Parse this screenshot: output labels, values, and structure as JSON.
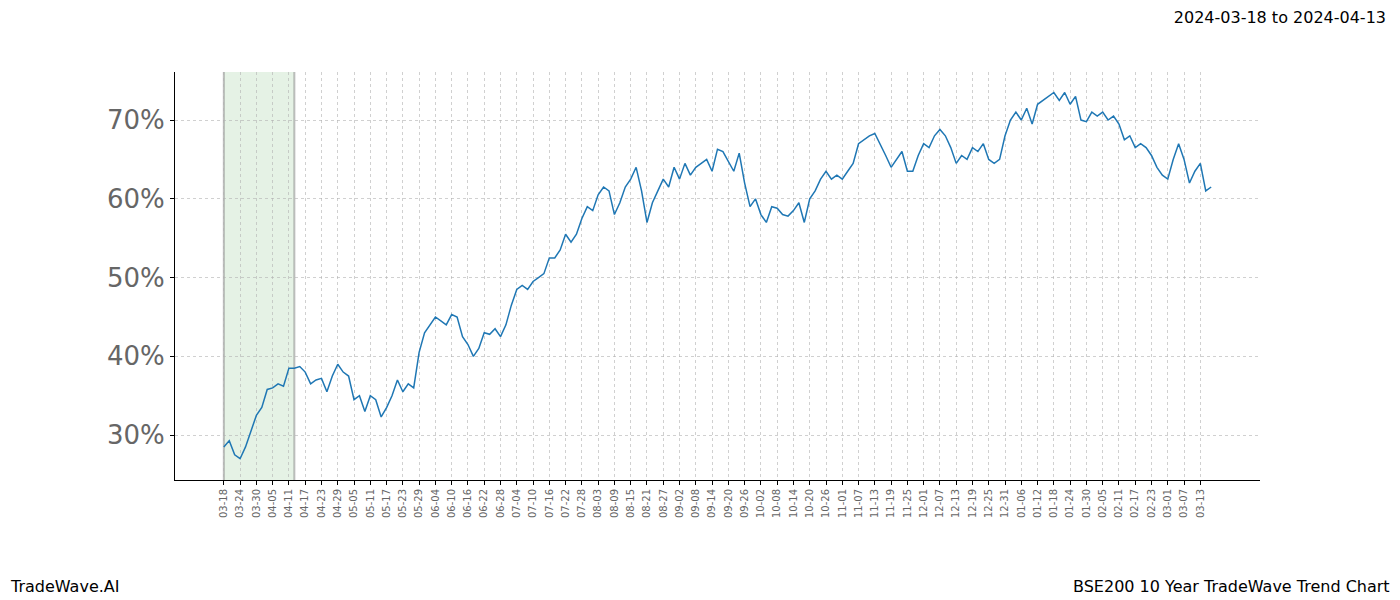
{
  "chart_data": {
    "type": "line",
    "title": "2024-03-18 to 2024-04-13",
    "annotations": [
      "TradeWave.AI",
      "BSE200 10 Year TradeWave Trend Chart"
    ],
    "categories": [
      "03-18",
      null,
      null,
      "03-24",
      null,
      null,
      "03-30",
      null,
      null,
      "04-05",
      null,
      null,
      "04-11",
      null,
      null,
      "04-17",
      null,
      null,
      "04-23",
      null,
      null,
      "04-29",
      null,
      null,
      "05-05",
      null,
      null,
      "05-11",
      null,
      null,
      "05-17",
      null,
      null,
      "05-23",
      null,
      null,
      "05-29",
      null,
      null,
      "06-04",
      null,
      null,
      "06-10",
      null,
      null,
      "06-16",
      null,
      null,
      "06-22",
      null,
      null,
      "06-28",
      null,
      null,
      "07-04",
      null,
      null,
      "07-10",
      null,
      null,
      "07-16",
      null,
      null,
      "07-22",
      null,
      null,
      "07-28",
      null,
      null,
      "08-03",
      null,
      null,
      "08-09",
      null,
      null,
      "08-15",
      null,
      null,
      "08-21",
      null,
      null,
      "08-27",
      null,
      null,
      "09-02",
      null,
      null,
      "09-08",
      null,
      null,
      "09-14",
      null,
      null,
      "09-20",
      null,
      null,
      "09-26",
      null,
      null,
      "10-02",
      null,
      null,
      "10-08",
      null,
      null,
      "10-14",
      null,
      null,
      "10-20",
      null,
      null,
      "10-26",
      null,
      null,
      "11-01",
      null,
      null,
      "11-07",
      null,
      null,
      "11-13",
      null,
      null,
      "11-19",
      null,
      null,
      "11-25",
      null,
      null,
      "12-01",
      null,
      null,
      "12-07",
      null,
      null,
      "12-13",
      null,
      null,
      "12-19",
      null,
      null,
      "12-25",
      null,
      null,
      "12-31",
      null,
      null,
      "01-06",
      null,
      null,
      "01-12",
      null,
      null,
      "01-18",
      null,
      null,
      "01-24",
      null,
      null,
      "01-30",
      null,
      null,
      "02-05",
      null,
      null,
      "02-11",
      null,
      null,
      "02-17",
      null,
      null,
      "02-23",
      null,
      null,
      "03-01",
      null,
      null,
      "03-07",
      null,
      null,
      "03-13",
      null,
      null
    ],
    "values": [
      28.5,
      29.3,
      27.5,
      27.0,
      28.5,
      30.5,
      32.5,
      33.5,
      35.8,
      36.0,
      36.5,
      36.2,
      38.5,
      38.5,
      38.7,
      38.0,
      36.5,
      37.0,
      37.2,
      35.5,
      37.5,
      39.0,
      38.0,
      37.5,
      34.5,
      35.0,
      33.0,
      35.0,
      34.5,
      32.3,
      33.5,
      35.0,
      37.0,
      35.5,
      36.5,
      36.0,
      40.5,
      43.0,
      44.0,
      45.0,
      44.5,
      44.0,
      45.3,
      45.0,
      42.5,
      41.5,
      40.0,
      41.0,
      43.0,
      42.8,
      43.5,
      42.5,
      44.0,
      46.5,
      48.5,
      49.0,
      48.5,
      49.5,
      50.0,
      50.5,
      52.5,
      52.5,
      53.5,
      55.5,
      54.5,
      55.5,
      57.5,
      59.0,
      58.5,
      60.5,
      61.5,
      61.0,
      58.0,
      59.5,
      61.5,
      62.5,
      64.0,
      61.0,
      57.0,
      59.5,
      61.0,
      62.5,
      61.5,
      64.0,
      62.5,
      64.5,
      63.0,
      64.0,
      64.5,
      65.0,
      63.5,
      66.3,
      66.0,
      64.8,
      63.5,
      65.8,
      62.0,
      59.0,
      60.0,
      58.0,
      57.0,
      59.0,
      58.8,
      58.0,
      57.8,
      58.5,
      59.5,
      57.0,
      60.0,
      61.0,
      62.5,
      63.5,
      62.5,
      63.0,
      62.5,
      63.5,
      64.5,
      67.0,
      67.5,
      68.0,
      68.3,
      67.0,
      65.5,
      64.0,
      65.0,
      66.0,
      63.5,
      63.5,
      65.5,
      67.0,
      66.5,
      68.0,
      68.8,
      68.0,
      66.5,
      64.5,
      65.5,
      65.0,
      66.5,
      66.0,
      67.0,
      65.0,
      64.5,
      65.0,
      68.0,
      70.0,
      71.0,
      70.0,
      71.5,
      69.5,
      72.0,
      72.5,
      73.0,
      73.5,
      72.5,
      73.5,
      72.0,
      73.0,
      70.0,
      69.8,
      71.0,
      70.5,
      71.0,
      70.0,
      70.5,
      69.5,
      67.5,
      68.0,
      66.5,
      67.0,
      66.5,
      65.5,
      64.0,
      63.0,
      62.5,
      65.0,
      67.0,
      65.0,
      62.0,
      63.5,
      64.5,
      61.0,
      61.5
    ],
    "color": "#1f77b4",
    "shaded": {
      "x": [
        0,
        13
      ]
    },
    "xlim": [
      -9,
      191
    ],
    "ylim": [
      24.3,
      76.1
    ],
    "yticks": [
      {
        "value": 30,
        "label": "30%"
      },
      {
        "value": 40,
        "label": "40%"
      },
      {
        "value": 50,
        "label": "50%"
      },
      {
        "value": 60,
        "label": "60%"
      },
      {
        "value": 70,
        "label": "70%"
      }
    ],
    "grid": true
  }
}
